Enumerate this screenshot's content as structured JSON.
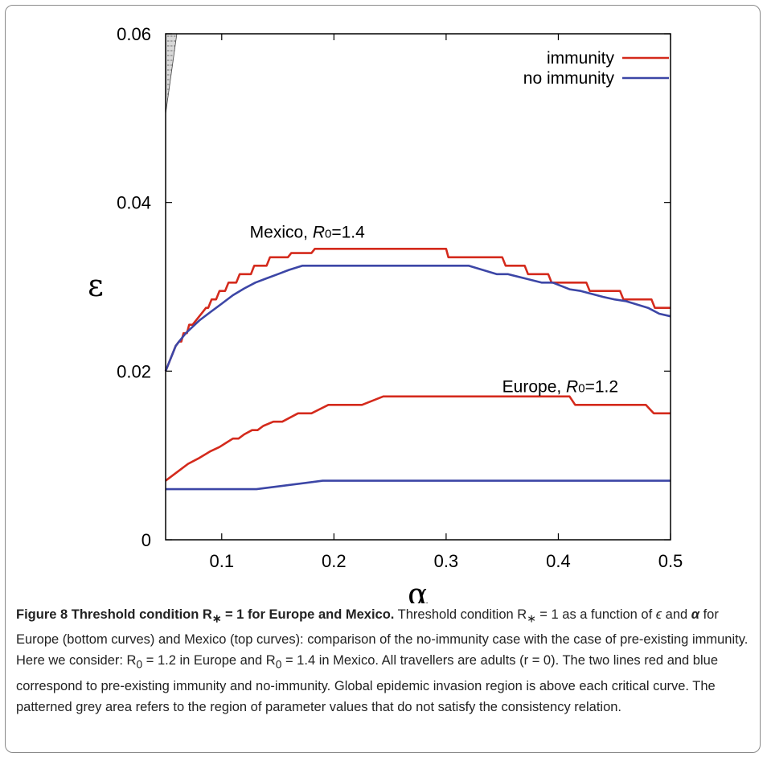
{
  "chart_data": {
    "type": "line",
    "xlabel": "α",
    "ylabel": "ε",
    "xlim": [
      0.05,
      0.5
    ],
    "ylim": [
      0,
      0.06
    ],
    "x_ticks": [
      "0.1",
      "0.2",
      "0.3",
      "0.4",
      "0.5"
    ],
    "x_tick_values": [
      0.1,
      0.2,
      0.3,
      0.4,
      0.5
    ],
    "y_ticks": [
      "0",
      "0.02",
      "0.04",
      "0.06"
    ],
    "y_tick_values": [
      0,
      0.02,
      0.04,
      0.06
    ],
    "legend": {
      "position": "top-right",
      "entries": [
        {
          "label": "immunity",
          "color": "#d42a1c"
        },
        {
          "label": "no immunity",
          "color": "#3c46a6"
        }
      ]
    },
    "annotations": [
      {
        "text": "Mexico, ",
        "italic": "R",
        "sub": "0",
        "rest": "=1.4",
        "x": 0.125,
        "y": 0.0358
      },
      {
        "text": "Europe, ",
        "italic": "R",
        "sub": "0",
        "rest": "=1.2",
        "x": 0.35,
        "y": 0.0175
      }
    ],
    "shaded_region": {
      "description": "inconsistent parameter region",
      "points": [
        [
          0.05,
          0.06
        ],
        [
          0.06,
          0.06
        ],
        [
          0.05,
          0.0505
        ]
      ],
      "color": "#d8d8d8"
    },
    "series": [
      {
        "group": "Mexico",
        "legend": "immunity",
        "color": "#d42a1c",
        "points": [
          [
            0.05,
            0.02
          ],
          [
            0.053,
            0.021
          ],
          [
            0.056,
            0.022
          ],
          [
            0.059,
            0.023
          ],
          [
            0.062,
            0.0235
          ],
          [
            0.064,
            0.0235
          ],
          [
            0.066,
            0.0245
          ],
          [
            0.069,
            0.0245
          ],
          [
            0.071,
            0.0255
          ],
          [
            0.074,
            0.0255
          ],
          [
            0.077,
            0.026
          ],
          [
            0.08,
            0.0265
          ],
          [
            0.083,
            0.027
          ],
          [
            0.086,
            0.0275
          ],
          [
            0.088,
            0.0275
          ],
          [
            0.091,
            0.0285
          ],
          [
            0.095,
            0.0285
          ],
          [
            0.098,
            0.0295
          ],
          [
            0.103,
            0.0295
          ],
          [
            0.106,
            0.0305
          ],
          [
            0.113,
            0.0305
          ],
          [
            0.116,
            0.0315
          ],
          [
            0.126,
            0.0315
          ],
          [
            0.129,
            0.0325
          ],
          [
            0.14,
            0.0325
          ],
          [
            0.143,
            0.0335
          ],
          [
            0.159,
            0.0335
          ],
          [
            0.162,
            0.034
          ],
          [
            0.18,
            0.034
          ],
          [
            0.183,
            0.0345
          ],
          [
            0.3,
            0.0345
          ],
          [
            0.302,
            0.0335
          ],
          [
            0.35,
            0.0335
          ],
          [
            0.353,
            0.0325
          ],
          [
            0.37,
            0.0325
          ],
          [
            0.373,
            0.0315
          ],
          [
            0.391,
            0.0315
          ],
          [
            0.394,
            0.0305
          ],
          [
            0.425,
            0.0305
          ],
          [
            0.428,
            0.0295
          ],
          [
            0.455,
            0.0295
          ],
          [
            0.458,
            0.0285
          ],
          [
            0.483,
            0.0285
          ],
          [
            0.486,
            0.0275
          ],
          [
            0.5,
            0.0275
          ]
        ]
      },
      {
        "group": "Mexico",
        "legend": "no immunity",
        "color": "#3c46a6",
        "points": [
          [
            0.05,
            0.02
          ],
          [
            0.053,
            0.021
          ],
          [
            0.056,
            0.022
          ],
          [
            0.059,
            0.023
          ],
          [
            0.062,
            0.0235
          ],
          [
            0.065,
            0.024
          ],
          [
            0.068,
            0.0245
          ],
          [
            0.072,
            0.025
          ],
          [
            0.08,
            0.026
          ],
          [
            0.09,
            0.027
          ],
          [
            0.1,
            0.028
          ],
          [
            0.11,
            0.029
          ],
          [
            0.12,
            0.0298
          ],
          [
            0.13,
            0.0305
          ],
          [
            0.14,
            0.031
          ],
          [
            0.15,
            0.0315
          ],
          [
            0.16,
            0.032
          ],
          [
            0.172,
            0.0325
          ],
          [
            0.32,
            0.0325
          ],
          [
            0.345,
            0.0315
          ],
          [
            0.355,
            0.0315
          ],
          [
            0.37,
            0.031
          ],
          [
            0.385,
            0.0305
          ],
          [
            0.395,
            0.0305
          ],
          [
            0.41,
            0.0297
          ],
          [
            0.42,
            0.0295
          ],
          [
            0.44,
            0.0288
          ],
          [
            0.45,
            0.0285
          ],
          [
            0.46,
            0.0283
          ],
          [
            0.48,
            0.0275
          ],
          [
            0.49,
            0.0268
          ],
          [
            0.5,
            0.0265
          ]
        ]
      },
      {
        "group": "Europe",
        "legend": "immunity",
        "color": "#d42a1c",
        "points": [
          [
            0.05,
            0.007
          ],
          [
            0.06,
            0.008
          ],
          [
            0.07,
            0.009
          ],
          [
            0.08,
            0.0097
          ],
          [
            0.09,
            0.0105
          ],
          [
            0.098,
            0.011
          ],
          [
            0.104,
            0.0115
          ],
          [
            0.11,
            0.012
          ],
          [
            0.115,
            0.012
          ],
          [
            0.12,
            0.0125
          ],
          [
            0.127,
            0.013
          ],
          [
            0.132,
            0.013
          ],
          [
            0.137,
            0.0135
          ],
          [
            0.146,
            0.014
          ],
          [
            0.154,
            0.014
          ],
          [
            0.168,
            0.015
          ],
          [
            0.18,
            0.015
          ],
          [
            0.195,
            0.016
          ],
          [
            0.225,
            0.016
          ],
          [
            0.244,
            0.017
          ],
          [
            0.41,
            0.017
          ],
          [
            0.415,
            0.016
          ],
          [
            0.478,
            0.016
          ],
          [
            0.485,
            0.015
          ],
          [
            0.5,
            0.015
          ]
        ]
      },
      {
        "group": "Europe",
        "legend": "no immunity",
        "color": "#3c46a6",
        "points": [
          [
            0.05,
            0.006
          ],
          [
            0.131,
            0.006
          ],
          [
            0.19,
            0.007
          ],
          [
            0.5,
            0.007
          ]
        ]
      }
    ]
  },
  "caption": {
    "title": "Figure 8 Threshold condition R",
    "title_sub": "∗",
    "title_rest": " = 1 for Europe and Mexico.",
    "body_1": " Threshold condition R",
    "body_1_sub": "∗",
    "body_2": " = 1 as a function of ",
    "sym_eps": "ϵ",
    "body_3": " and ",
    "sym_alpha": "α",
    "body_4": " for Europe (bottom curves) and Mexico (top curves): comparison of the no-immunity case with the case of pre-existing immunity. Here we consider: R",
    "body_4_sub": "0",
    "body_5": " = 1.2 in Europe and R",
    "body_5_sub": "0",
    "body_6": " = 1.4 in Mexico. All travellers are adults (r = 0). The two lines red and blue correspond to pre-existing immunity and no-immunity. Global epidemic invasion region is above each critical curve. The patterned grey area refers to the region of parameter values that do not satisfy the consistency relation."
  }
}
